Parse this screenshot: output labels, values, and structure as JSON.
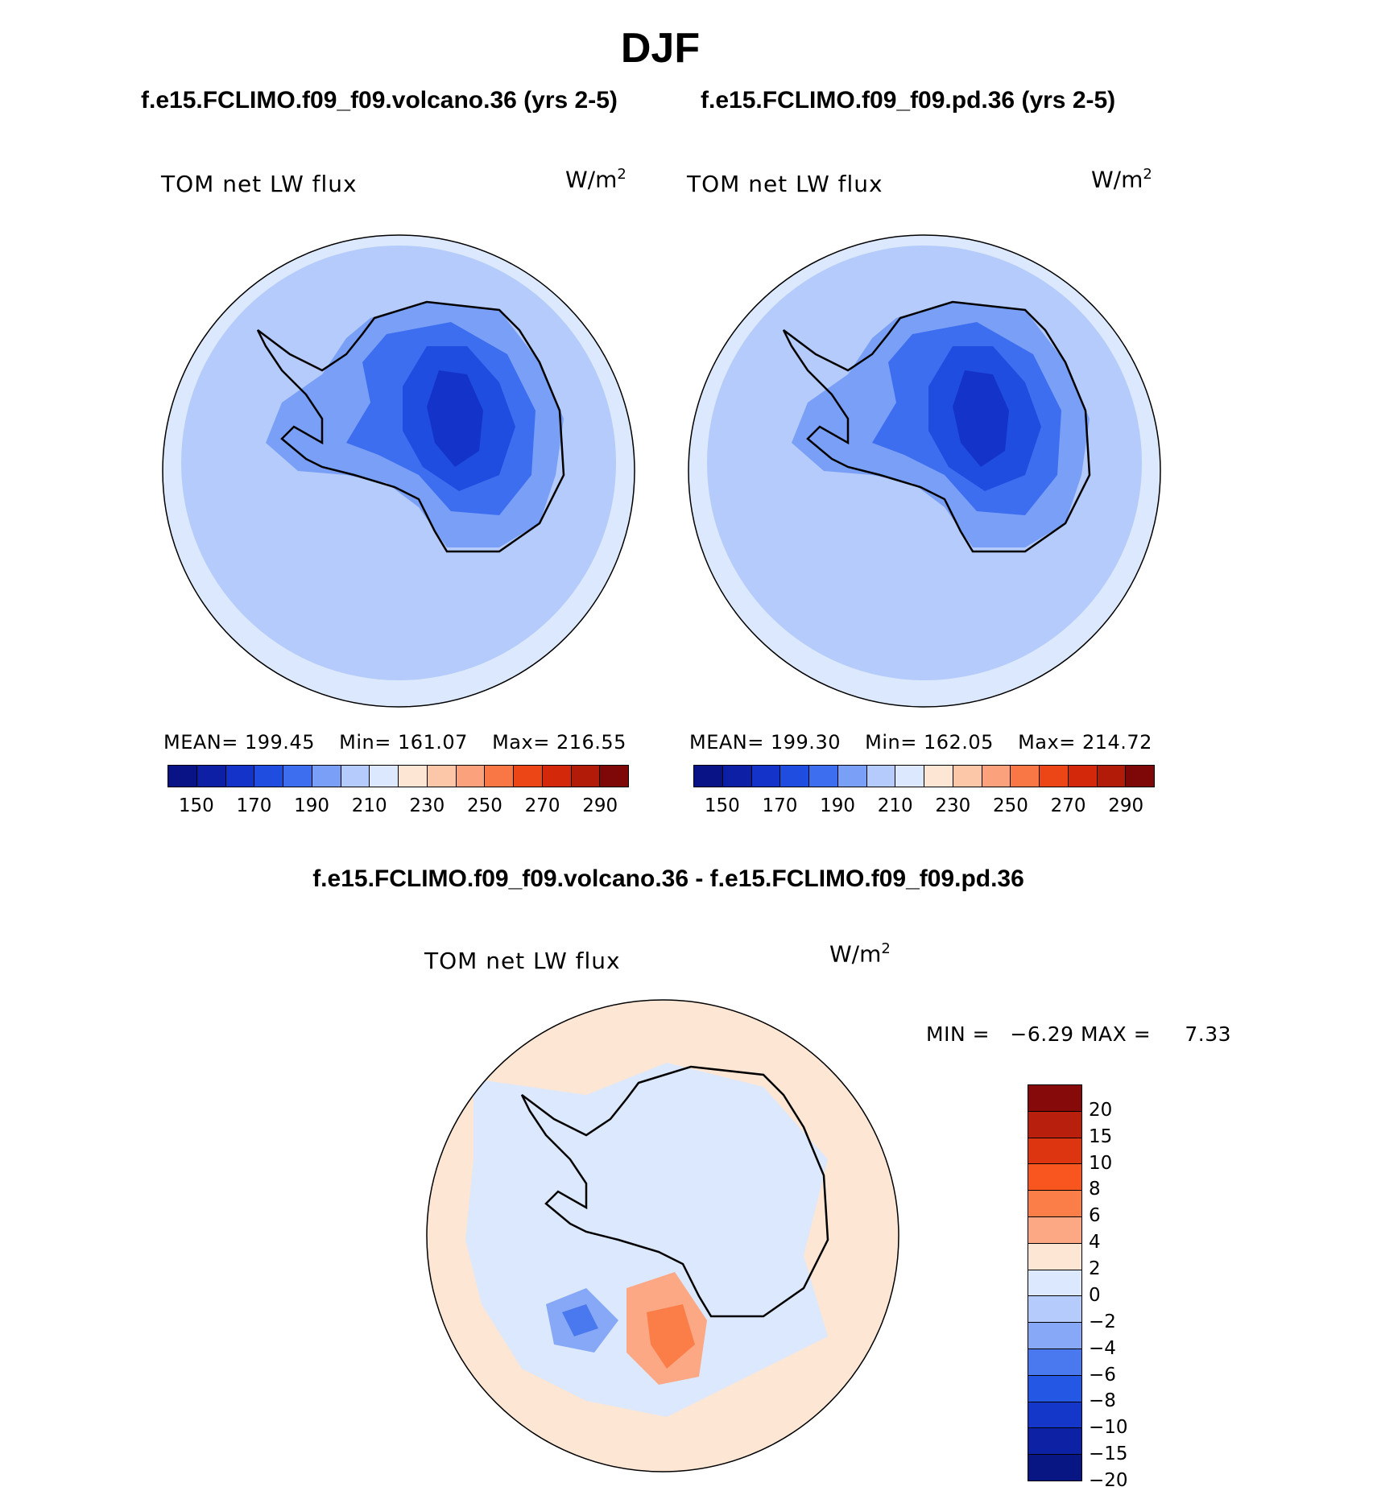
{
  "title": "DJF",
  "panels": [
    {
      "case_title": "f.e15.FCLIMO.f09_f09.volcano.36 (yrs 2-5)",
      "label": "TOM net LW flux",
      "units_base": "W/m",
      "units_exp": "2",
      "mean_label": "MEAN=",
      "mean": "199.45",
      "min_label": "Min=",
      "min": "161.07",
      "max_label": "Max=",
      "max": "216.55"
    },
    {
      "case_title": "f.e15.FCLIMO.f09_f09.pd.36 (yrs 2-5)",
      "label": "TOM net LW flux",
      "units_base": "W/m",
      "units_exp": "2",
      "mean_label": "MEAN=",
      "mean": "199.30",
      "min_label": "Min=",
      "min": "162.05",
      "max_label": "Max=",
      "max": "214.72"
    }
  ],
  "colorbar_abs": {
    "colors": [
      "#0a1385",
      "#0c1fa5",
      "#1433c8",
      "#1f4ddf",
      "#3d6ef0",
      "#7a9ff7",
      "#b4cbfb",
      "#dbe8fd",
      "#fde6d4",
      "#fcc6a9",
      "#fba27d",
      "#f97645",
      "#ec4516",
      "#d3280a",
      "#b11b08",
      "#7e0808"
    ],
    "ticks": [
      "150",
      "170",
      "190",
      "210",
      "230",
      "250",
      "270",
      "290"
    ]
  },
  "diff": {
    "title": "f.e15.FCLIMO.f09_f09.volcano.36 - f.e15.FCLIMO.f09_f09.pd.36",
    "label": "TOM net LW flux",
    "units_base": "W/m",
    "units_exp": "2",
    "min_label": "MIN =",
    "min": "−6.29",
    "max_label": "MAX =",
    "max": "7.33"
  },
  "colorbar_diff": {
    "colors": [
      "#870a0a",
      "#b81f0c",
      "#dd3510",
      "#f8561e",
      "#fb7d48",
      "#fca885",
      "#fde6d4",
      "#dbe8fd",
      "#b4cbfb",
      "#86a8f6",
      "#4a78ee",
      "#2457e3",
      "#1436c9",
      "#0d21a4",
      "#081683"
    ],
    "ticks": [
      "20",
      "15",
      "10",
      "8",
      "6",
      "4",
      "2",
      "0",
      "−2",
      "−4",
      "−6",
      "−8",
      "−10",
      "−15",
      "−20"
    ]
  }
}
